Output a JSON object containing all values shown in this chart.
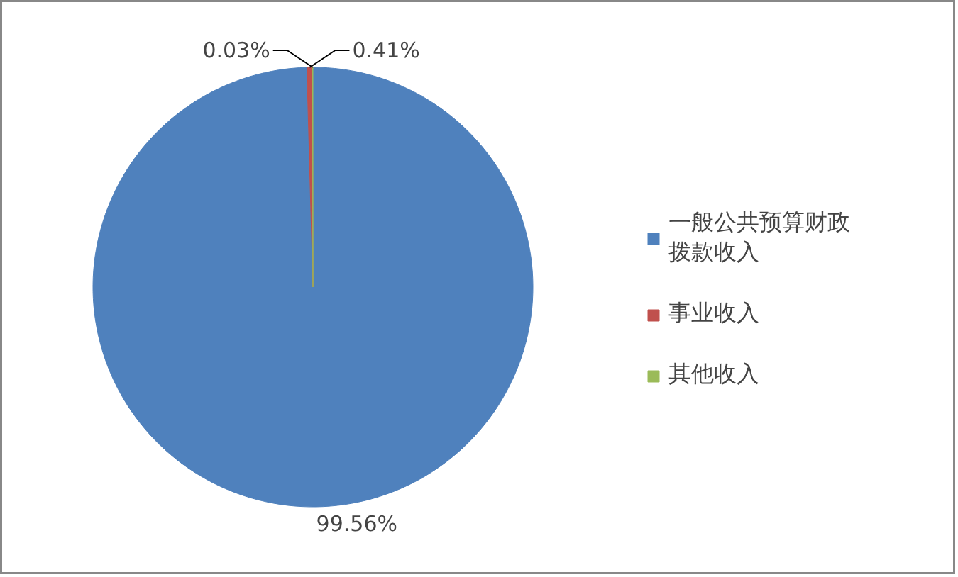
{
  "chart_data": {
    "type": "pie",
    "categories": [
      "一般公共预算财政拨款收入",
      "事业收入",
      "其他收入"
    ],
    "values": [
      99.56,
      0.41,
      0.03
    ],
    "colors": [
      "#4f81bd",
      "#c0504d",
      "#9bbb59"
    ],
    "value_labels": [
      "99.56%",
      "0.41%",
      "0.03%"
    ],
    "legend": "right"
  }
}
